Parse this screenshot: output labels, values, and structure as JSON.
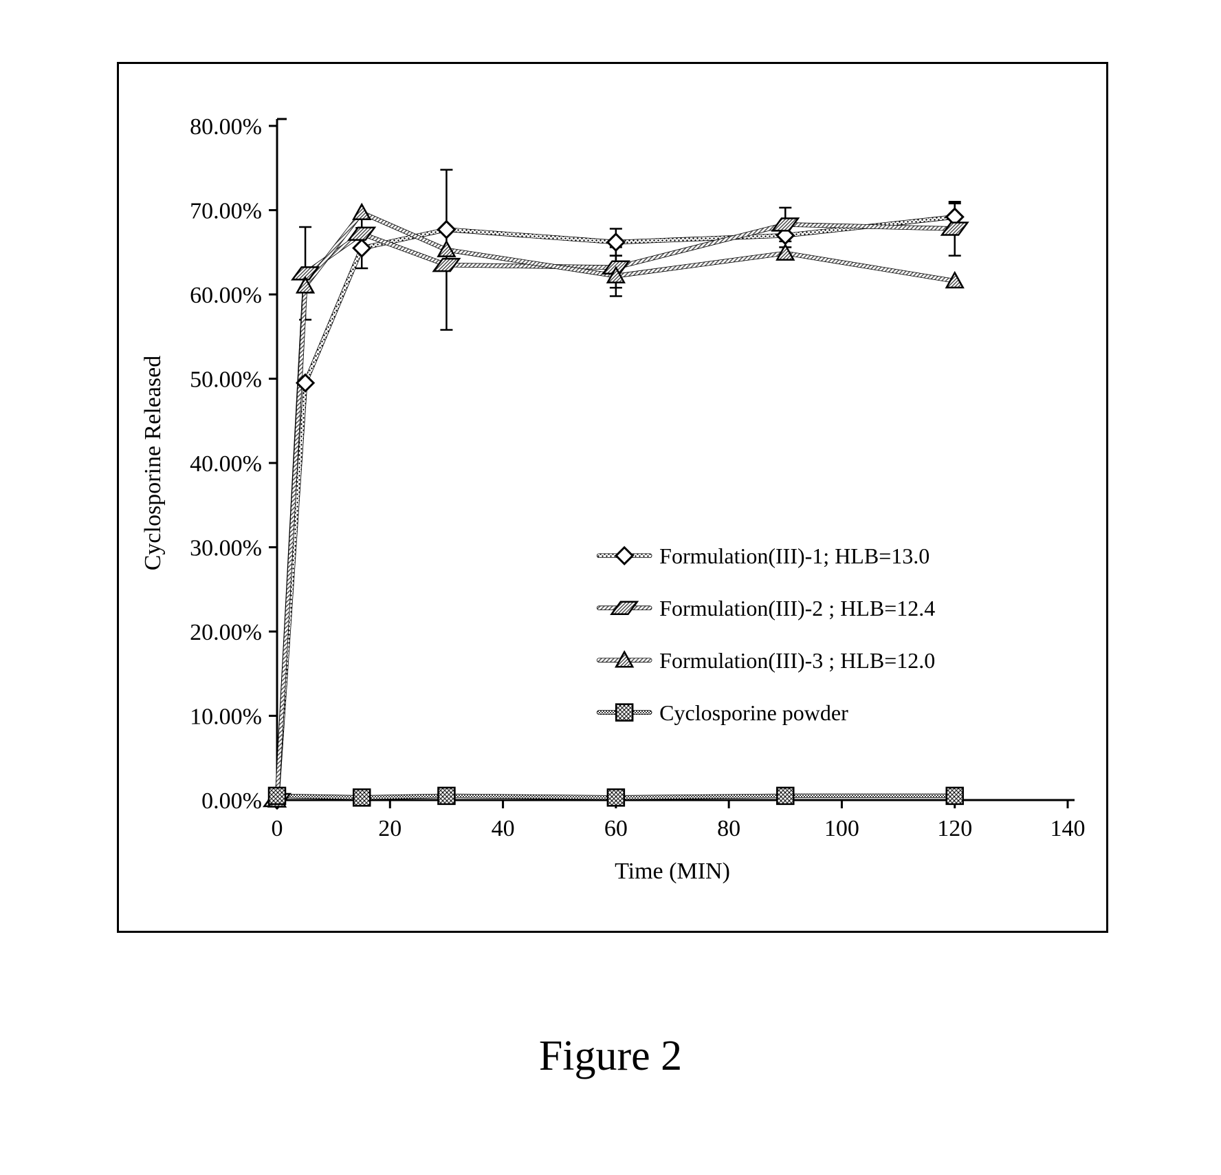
{
  "caption": "Figure 2",
  "chart": {
    "type": "line-scatter-errorbar",
    "background_color": "#ffffff",
    "axis_color": "#000000",
    "axis_line_width": 3,
    "tick_length": 12,
    "tick_font_size": 34,
    "axis_title_font_size": 34,
    "x": {
      "title": "Time (MIN)",
      "min": 0,
      "max": 140,
      "ticks": [
        0,
        20,
        40,
        60,
        80,
        100,
        120,
        140
      ]
    },
    "y": {
      "title": "Cyclosporine  Released",
      "min": 0,
      "max": 80,
      "ticks": [
        0,
        10,
        20,
        30,
        40,
        50,
        60,
        70,
        80
      ],
      "tick_labels": [
        "0.00%",
        "10.00%",
        "20.00%",
        "30.00%",
        "40.00%",
        "50.00%",
        "60.00%",
        "70.00%",
        "80.00%"
      ]
    },
    "marker_size": 20,
    "line_width": 5,
    "errorbar_width": 2.5,
    "errorbar_cap": 18,
    "series": [
      {
        "id": "s1",
        "label": "Formulation(III)-1; HLB=13.0",
        "marker": "diamond-open",
        "color": "#000000",
        "pattern": "dots",
        "x": [
          0,
          5,
          15,
          30,
          60,
          90,
          120
        ],
        "y": [
          0,
          49.5,
          65.5,
          67.7,
          66.2,
          67.0,
          69.2
        ],
        "err": [
          0,
          0,
          2.4,
          0,
          1.6,
          1.4,
          1.6
        ]
      },
      {
        "id": "s2",
        "label": "Formulation(III)-2 ; HLB=12.4",
        "marker": "parallelogram",
        "color": "#333333",
        "pattern": "diaghatch",
        "x": [
          0,
          5,
          15,
          30,
          60,
          90,
          120
        ],
        "y": [
          0,
          62.5,
          67.2,
          63.5,
          63.2,
          68.3,
          67.8
        ],
        "err": [
          0,
          5.5,
          2.0,
          0,
          2.4,
          2.0,
          3.2
        ]
      },
      {
        "id": "s3",
        "label": "Formulation(III)-3 ; HLB=12.0",
        "marker": "triangle",
        "color": "#333333",
        "pattern": "diaghatch",
        "x": [
          0,
          5,
          15,
          30,
          60,
          90,
          120
        ],
        "y": [
          0,
          61.0,
          69.7,
          65.3,
          62.2,
          64.9,
          61.6
        ],
        "err": [
          0,
          0,
          0,
          9.5,
          2.4,
          0,
          0
        ]
      },
      {
        "id": "s4",
        "label": "Cyclosporine powder",
        "marker": "square-cross",
        "color": "#000000",
        "pattern": "dotsdense",
        "x": [
          0,
          15,
          30,
          60,
          90,
          120
        ],
        "y": [
          0.5,
          0.3,
          0.5,
          0.3,
          0.5,
          0.5
        ],
        "err": [
          0,
          0,
          0,
          0,
          0,
          0
        ]
      }
    ],
    "legend": {
      "font_size": 32,
      "x": 66,
      "y_start": 29,
      "line_spacing": 6.2,
      "sample_line_len": 9,
      "text_color": "#000000"
    }
  }
}
